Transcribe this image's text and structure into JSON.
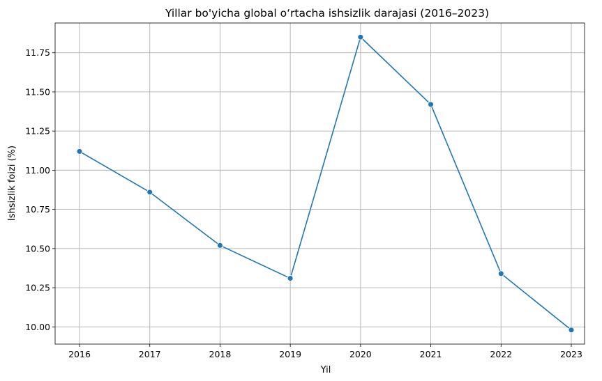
{
  "chart_data": {
    "type": "line",
    "title": "Yillar bo'yicha global o‘rtacha ishsizlik darajasi (2016–2023)",
    "xlabel": "Yil",
    "ylabel": "Ishsizlik foizi (%)",
    "x": [
      "2016",
      "2017",
      "2018",
      "2019",
      "2020",
      "2021",
      "2022",
      "2023"
    ],
    "values": [
      11.12,
      10.86,
      10.52,
      10.31,
      11.85,
      11.42,
      10.34,
      9.98
    ],
    "ylim": [
      9.89,
      11.94
    ],
    "yticks": [
      "10.00",
      "10.25",
      "10.50",
      "10.75",
      "11.00",
      "11.25",
      "11.50",
      "11.75"
    ],
    "grid": true,
    "marker": "circle",
    "legend": "none",
    "colors": {
      "line": "#1f77b4",
      "grid": "#b0b0b0",
      "axes": "#000000"
    }
  }
}
